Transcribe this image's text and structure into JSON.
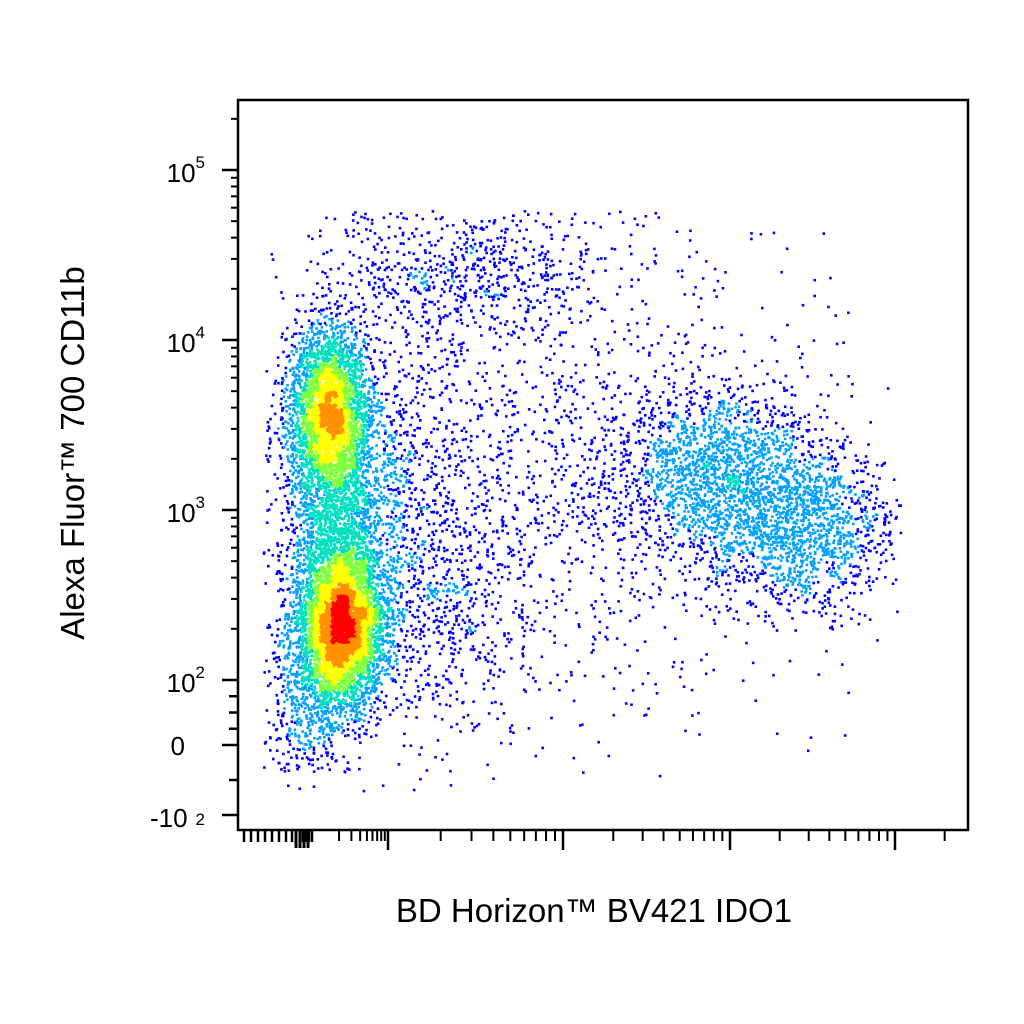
{
  "chart_data": {
    "type": "scatter",
    "subtype": "flow-cytometry-density-dot-plot",
    "xlabel": "BD Horizon™ BV421 IDO1",
    "ylabel": "Alexa Fluor™ 700 CD11b",
    "x_scale": "biexponential",
    "y_scale": "biexponential",
    "y_ticks": [
      {
        "value": -100,
        "base": "-10",
        "exp": "2"
      },
      {
        "value": 0,
        "base": "0",
        "exp": ""
      },
      {
        "value": 100,
        "base": "10",
        "exp": "2"
      },
      {
        "value": 1000,
        "base": "10",
        "exp": "3"
      },
      {
        "value": 10000,
        "base": "10",
        "exp": "4"
      },
      {
        "value": 100000,
        "base": "10",
        "exp": "5"
      }
    ],
    "x_ticks_labeled": false,
    "grid": false,
    "legend": "none",
    "colormap": [
      "#0000ff",
      "#00a0ff",
      "#00e0c0",
      "#80ff40",
      "#ffff00",
      "#ff9000",
      "#ff0000"
    ],
    "populations": [
      {
        "x_center": 25,
        "y_center": 180,
        "relative_density": 1.0
      },
      {
        "x_center": 20,
        "y_center": 3500,
        "relative_density": 0.7
      },
      {
        "x_center": 40,
        "y_center": 800,
        "relative_density": 0.35
      },
      {
        "x_center": 3000,
        "y_center": 1500,
        "relative_density": 0.35
      },
      {
        "x_center": 12000,
        "y_center": 700,
        "relative_density": 0.3
      },
      {
        "x_center": 150,
        "y_center": 25000,
        "relative_density": 0.2
      },
      {
        "x_center": 400,
        "y_center": 900,
        "relative_density": 0.15
      }
    ]
  }
}
